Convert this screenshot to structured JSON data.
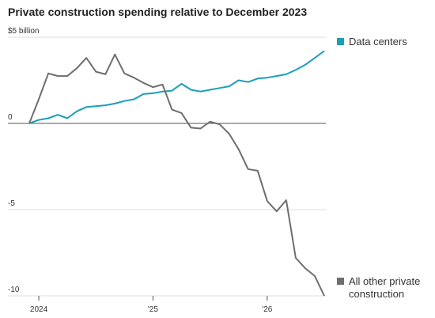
{
  "chart_data": {
    "type": "line",
    "title": "Private construction spending relative to December 2023",
    "categories": [
      null,
      "2024",
      null,
      null,
      null,
      null,
      null,
      null,
      null,
      null,
      null,
      null,
      null,
      "'25",
      null,
      null,
      null,
      null,
      null,
      null,
      null,
      null,
      null,
      null,
      null,
      "'26",
      null,
      null,
      null,
      null,
      null,
      null
    ],
    "series": [
      {
        "name": "Data centers",
        "color": "#1a9fb5",
        "values": [
          0,
          0.2,
          0.3,
          0.5,
          0.3,
          0.7,
          0.95,
          1.0,
          1.05,
          1.15,
          1.3,
          1.4,
          1.7,
          1.75,
          1.85,
          1.9,
          2.3,
          1.95,
          1.85,
          1.95,
          2.05,
          2.15,
          2.5,
          2.4,
          2.6,
          2.65,
          2.75,
          2.85,
          3.1,
          3.4,
          3.8,
          4.2
        ]
      },
      {
        "name": "All other private construction",
        "color": "#6e6e6e",
        "values": [
          0,
          1.4,
          2.9,
          2.75,
          2.75,
          3.2,
          3.8,
          3.0,
          2.85,
          4.0,
          2.9,
          2.65,
          2.35,
          2.1,
          2.25,
          0.8,
          0.6,
          -0.25,
          -0.3,
          0.1,
          -0.05,
          -0.6,
          -1.5,
          -2.65,
          -2.75,
          -4.5,
          -5.1,
          -4.45,
          -7.8,
          -8.4,
          -8.85,
          -10
        ]
      }
    ],
    "ylim": [
      -10,
      5
    ],
    "yticks": [
      {
        "value": 5,
        "label": "$5 billion"
      },
      0,
      -5,
      -10
    ],
    "grid": true
  }
}
